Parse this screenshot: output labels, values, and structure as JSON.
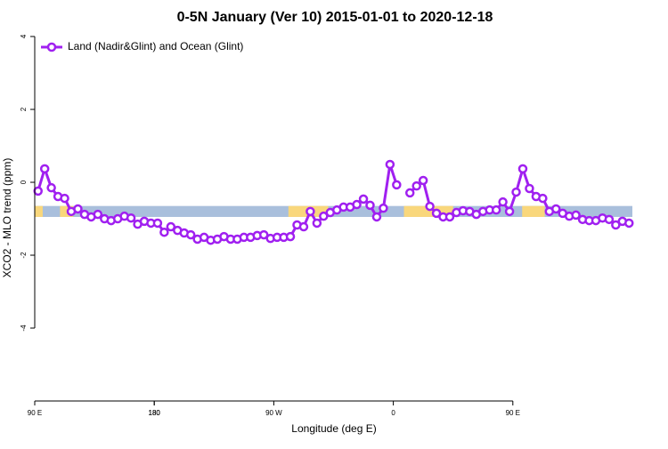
{
  "chart_data": {
    "type": "line",
    "title": "0-5N January (Ver 10)   2015-01-01 to 2020-12-18",
    "xlabel": "Longitude (deg E)",
    "ylabel": "XCO2 - MLO trend (ppm)",
    "xlim": [
      90,
      540
    ],
    "ylim": [
      -6,
      4.05
    ],
    "xticks": [
      {
        "value": 90,
        "label": "90 E"
      },
      180,
      {
        "value": 270,
        "label": "90 W"
      },
      {
        "value": 360,
        "label": "0"
      },
      {
        "value": 450,
        "label": "90 E"
      },
      180.0001
    ],
    "yticks": [
      -4,
      -2,
      0,
      2,
      4
    ],
    "legend": "top-left",
    "surface_strip": {
      "ylim": [
        -0.95,
        -0.65
      ],
      "ocean_color": "#a9bfdc",
      "land_color": "#f9d77c",
      "land_ranges": [
        [
          90,
          96
        ],
        [
          109,
          119
        ],
        [
          281,
          311
        ],
        [
          368,
          405
        ],
        [
          457,
          474
        ]
      ]
    },
    "x": [
      92.5,
      97.5,
      102.5,
      107.5,
      112.5,
      117.5,
      122.5,
      127.5,
      132.5,
      137.5,
      142.5,
      147.5,
      152.5,
      157.5,
      162.5,
      167.5,
      172.5,
      177.5,
      182.5,
      187.5,
      192.5,
      197.5,
      202.5,
      207.5,
      212.5,
      217.5,
      222.5,
      227.5,
      232.5,
      237.5,
      242.5,
      247.5,
      252.5,
      257.5,
      262.5,
      267.5,
      272.5,
      277.5,
      282.5,
      287.5,
      292.5,
      297.5,
      302.5,
      307.5,
      312.5,
      317.5,
      322.5,
      327.5,
      332.5,
      337.5,
      342.5,
      347.5,
      352.5,
      357.5,
      362.5,
      367.5,
      372.5,
      377.5,
      382.5,
      387.5,
      392.5,
      397.5,
      402.5,
      407.5,
      412.5,
      417.5,
      422.5,
      427.5,
      432.5,
      437.5,
      442.5,
      447.5,
      452.5,
      457.5,
      462.5,
      467.5,
      472.5,
      477.5,
      482.5,
      487.5,
      492.5,
      497.5,
      502.5,
      507.5,
      512.5,
      517.5,
      522.5,
      527.5,
      532.5,
      537.5
    ],
    "series": [
      {
        "name": "Land (Nadir&Glint) and Ocean (Glint)",
        "color": "#a020f0",
        "values": [
          -0.24,
          0.37,
          -0.15,
          -0.39,
          -0.44,
          -0.8,
          -0.73,
          -0.88,
          -0.95,
          -0.88,
          -1.0,
          -1.05,
          -1.0,
          -0.93,
          -0.98,
          -1.15,
          -1.07,
          -1.12,
          -1.12,
          -1.37,
          -1.22,
          -1.32,
          -1.39,
          -1.44,
          -1.56,
          -1.51,
          -1.59,
          -1.56,
          -1.49,
          -1.56,
          -1.56,
          -1.51,
          -1.51,
          -1.46,
          -1.44,
          -1.54,
          -1.51,
          -1.51,
          -1.49,
          -1.17,
          -1.22,
          -0.8,
          -1.12,
          -0.93,
          -0.83,
          -0.76,
          -0.68,
          -0.68,
          -0.61,
          -0.46,
          -0.63,
          -0.95,
          -0.71,
          0.49,
          -0.07,
          null,
          -0.29,
          -0.1,
          0.05,
          -0.66,
          -0.85,
          -0.95,
          -0.95,
          -0.83,
          -0.78,
          -0.8,
          -0.88,
          -0.8,
          -0.76,
          -0.76,
          -0.54,
          -0.8,
          -0.27,
          0.37,
          -0.17,
          -0.39,
          -0.44,
          -0.8,
          -0.73,
          -0.85,
          -0.93,
          -0.9,
          -1.02,
          -1.05,
          -1.05,
          -0.98,
          -1.02,
          -1.17,
          -1.07,
          -1.12
        ]
      }
    ]
  }
}
